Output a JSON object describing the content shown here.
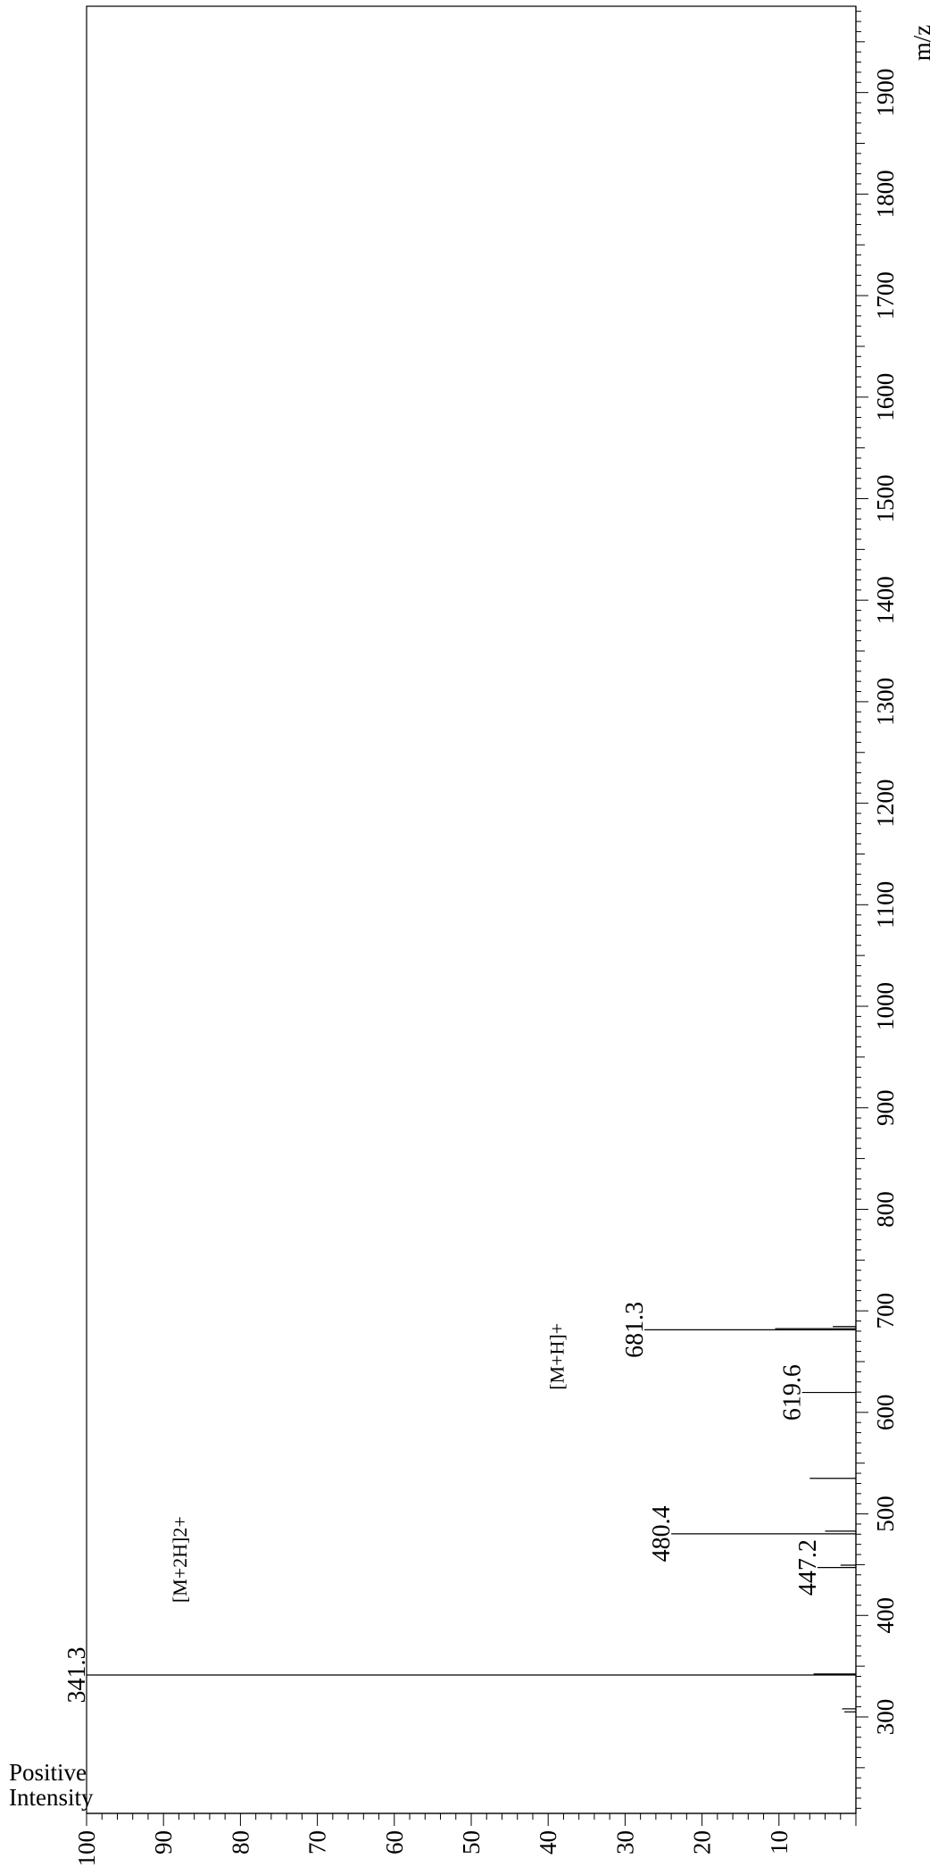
{
  "chart_data": {
    "type": "bar",
    "orientation": "rotated-90",
    "title": "",
    "ylabel_line1": "Positive",
    "ylabel_line2": "Intensity",
    "xlabel": "m/z",
    "xlim": [
      205,
      1985
    ],
    "ylim": [
      0,
      100
    ],
    "x_ticks": [
      300,
      400,
      500,
      600,
      700,
      800,
      900,
      1000,
      1100,
      1200,
      1300,
      1400,
      1500,
      1600,
      1700,
      1800,
      1900
    ],
    "y_ticks": [
      10,
      20,
      30,
      40,
      50,
      60,
      70,
      80,
      90,
      100
    ],
    "peaks": [
      {
        "mz": 305,
        "intensity": 1.5
      },
      {
        "mz": 308,
        "intensity": 1.8
      },
      {
        "mz": 341.3,
        "intensity": 100,
        "label": "341.3"
      },
      {
        "mz": 342.3,
        "intensity": 5.5
      },
      {
        "mz": 447.2,
        "intensity": 5.0,
        "label": "447.2"
      },
      {
        "mz": 449.5,
        "intensity": 2.0
      },
      {
        "mz": 480.4,
        "intensity": 24.0,
        "label": "480.4"
      },
      {
        "mz": 483,
        "intensity": 4.0
      },
      {
        "mz": 535,
        "intensity": 6.0
      },
      {
        "mz": 619.6,
        "intensity": 7.0,
        "label": "619.6"
      },
      {
        "mz": 681.3,
        "intensity": 27.5,
        "label": "681.3"
      },
      {
        "mz": 682.5,
        "intensity": 10.5
      },
      {
        "mz": 684.5,
        "intensity": 3.0
      }
    ],
    "annotations": [
      {
        "text": "[M+2H]2+",
        "mz": 455,
        "intensity": 87
      },
      {
        "text": "[M+H]+",
        "mz": 655,
        "intensity": 38
      }
    ]
  }
}
